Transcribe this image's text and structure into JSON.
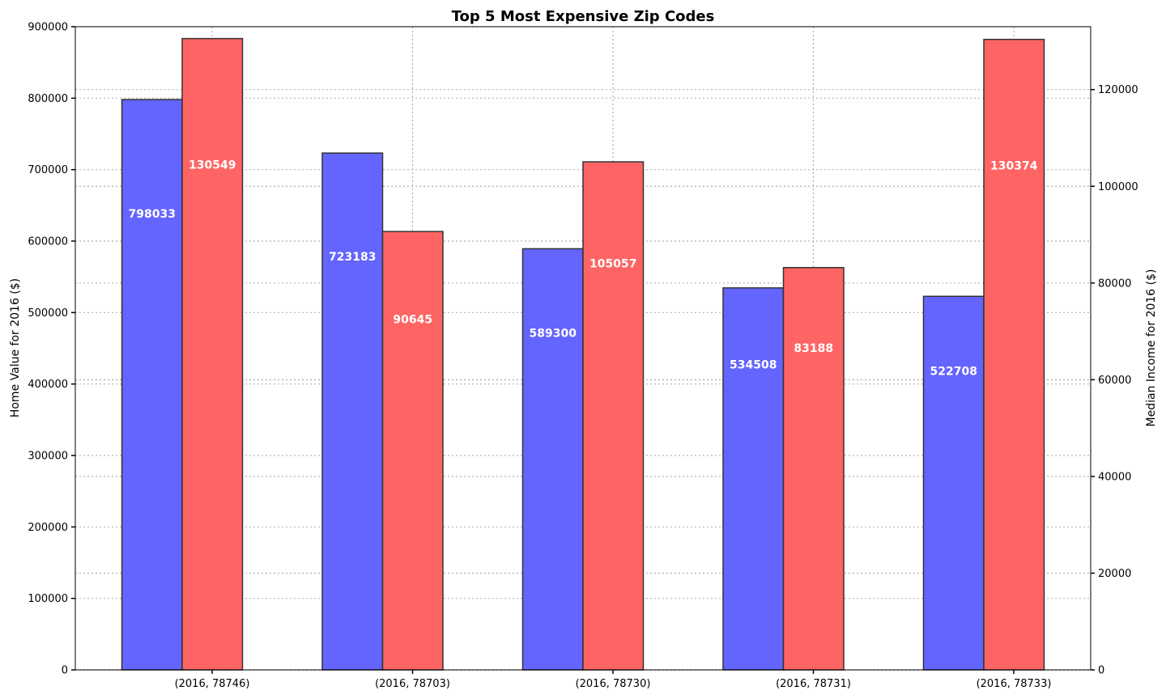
{
  "chart_data": {
    "type": "bar",
    "title": "Top 5 Most Expensive Zip Codes",
    "categories": [
      "(2016, 78746)",
      "(2016, 78703)",
      "(2016, 78730)",
      "(2016, 78731)",
      "(2016, 78733)"
    ],
    "series": [
      {
        "values": [
          798033,
          723183,
          589300,
          534508,
          522708
        ],
        "axis": "left",
        "color": "#6464ff"
      },
      {
        "values": [
          130549,
          90645,
          105057,
          83188,
          130374
        ],
        "axis": "right",
        "color": "#ff6464"
      }
    ],
    "ylabel": "Home Value for 2016 ($)",
    "y2label": "Median Income for 2016 ($)",
    "ylim": [
      0,
      900000
    ],
    "y2lim": [
      0,
      133000
    ],
    "yticks": [
      "0",
      "100000",
      "200000",
      "300000",
      "400000",
      "500000",
      "600000",
      "700000",
      "800000",
      "900000"
    ],
    "y2ticks": [
      "0",
      "20000",
      "40000",
      "60000",
      "80000",
      "100000",
      "120000"
    ],
    "grid": true,
    "legend": "none"
  }
}
